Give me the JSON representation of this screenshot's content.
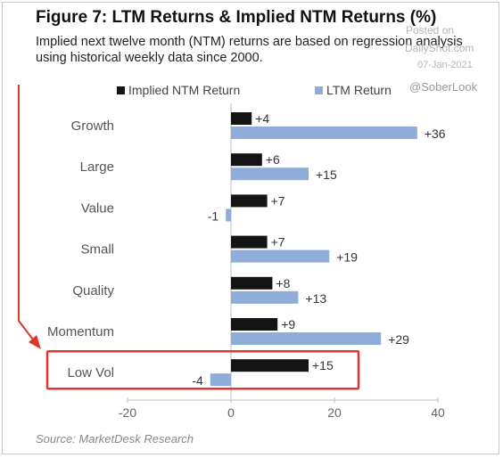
{
  "title": "Figure 7: LTM Returns & Implied NTM Returns (%)",
  "subtitle": "Implied next twelve month (NTM) returns are based on regression analysis using historical weekly data since 2000.",
  "watermark": {
    "posted_on": "Posted on",
    "site": "DailyShot.com",
    "date": "07-Jan-2021",
    "handle": "@SoberLook"
  },
  "source": "Source: MarketDesk Research",
  "colors": {
    "implied": "#141414",
    "ltm": "#8fadd9",
    "highlight": "#e0352b"
  },
  "chart_data": {
    "type": "bar",
    "orientation": "horizontal",
    "categories": [
      "Growth",
      "Large",
      "Value",
      "Small",
      "Quality",
      "Momentum",
      "Low Vol"
    ],
    "series": [
      {
        "name": "Implied NTM Return",
        "values": [
          4,
          6,
          7,
          7,
          8,
          9,
          15
        ],
        "labels": [
          "+4",
          "+6",
          "+7",
          "+7",
          "+8",
          "+9",
          "+15"
        ]
      },
      {
        "name": "LTM Return",
        "values": [
          36,
          15,
          -1,
          19,
          13,
          29,
          -4
        ],
        "labels": [
          "+36",
          "+15",
          "-1",
          "+19",
          "+13",
          "+29",
          "-4"
        ]
      }
    ],
    "xlim": [
      -20,
      40
    ],
    "xticks": [
      -20,
      0,
      20,
      40
    ],
    "xtick_labels": [
      "-20",
      "0",
      "20",
      "40"
    ],
    "legend": "top",
    "grid": false,
    "highlighted_category": "Low Vol"
  }
}
